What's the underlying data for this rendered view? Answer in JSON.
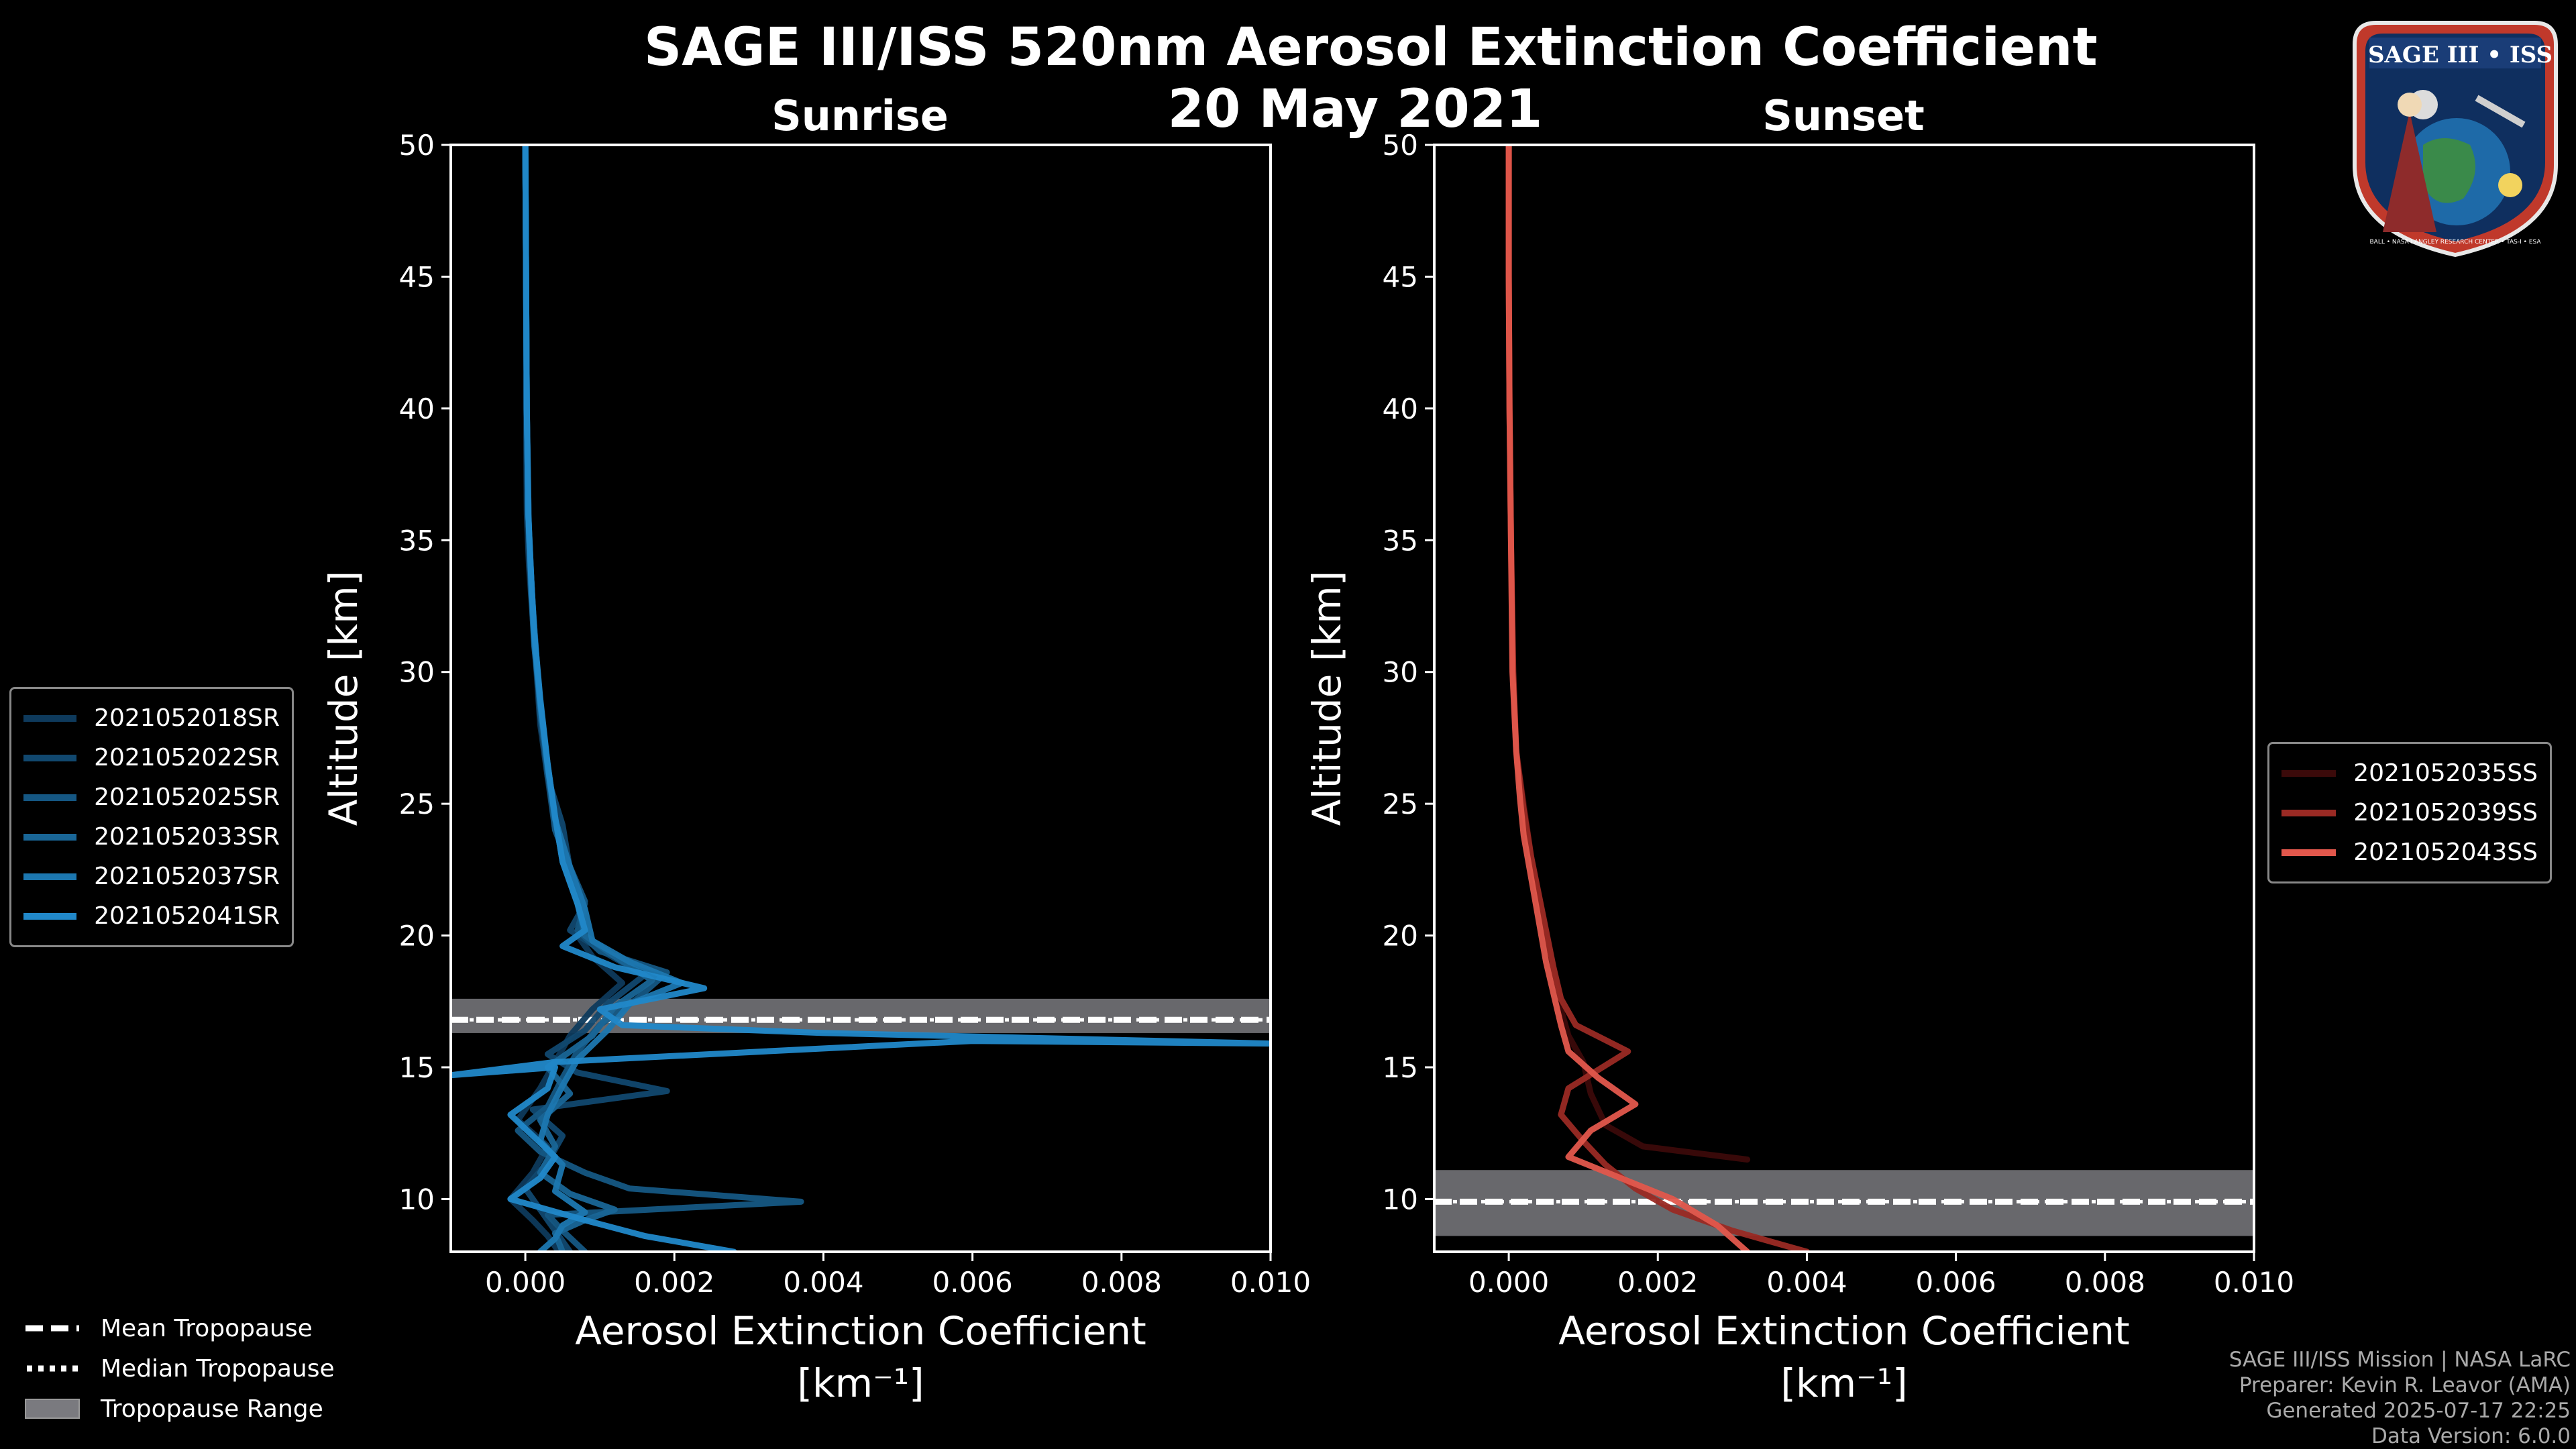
{
  "header": {
    "title_line1": "SAGE III/ISS 520nm Aerosol Extinction Coefficient",
    "title_line2": "20 May 2021"
  },
  "logo": {
    "text": "SAGE III • ISS",
    "ring_text": "BALL • NASA LANGLEY RESEARCH CENTER • TAS-I • ESA"
  },
  "footer": {
    "line1": "SAGE III/ISS Mission | NASA LaRC",
    "line2": "Preparer: Kevin R. Leavor (AMA)",
    "line3": "Generated 2025-07-17 22:25",
    "line4": "Data Version: 6.0.0"
  },
  "tropopause_legend": {
    "mean": "Mean Tropopause",
    "median": "Median Tropopause",
    "range": "Tropopause Range"
  },
  "chart_data": [
    {
      "type": "line",
      "title": "Sunrise",
      "xlabel": "Aerosol Extinction Coefficient",
      "xlabel_unit": "[km⁻¹]",
      "ylabel": "Altitude [km]",
      "xlim": [
        -0.001,
        0.01
      ],
      "ylim": [
        8,
        50
      ],
      "xticks": [
        0.0,
        0.002,
        0.004,
        0.006,
        0.008,
        0.01
      ],
      "xtick_labels": [
        "0.000",
        "0.002",
        "0.004",
        "0.006",
        "0.008",
        "0.010"
      ],
      "yticks": [
        10,
        15,
        20,
        25,
        30,
        35,
        40,
        45,
        50
      ],
      "ytick_labels": [
        "10",
        "15",
        "20",
        "25",
        "30",
        "35",
        "40",
        "45",
        "50"
      ],
      "tropopause": {
        "mean": 16.8,
        "median": 16.8,
        "range": [
          16.3,
          17.6
        ]
      },
      "series": [
        {
          "name": "2021052018SR",
          "color": "#0e3a5c",
          "points": [
            [
              0.00045,
              8.0
            ],
            [
              0.0003,
              8.6
            ],
            [
              0.0001,
              9.2
            ],
            [
              -0.0002,
              10.0
            ],
            [
              0.0001,
              11.0
            ],
            [
              0.0003,
              12.0
            ],
            [
              -0.0001,
              13.0
            ],
            [
              0.0002,
              14.2
            ],
            [
              0.0004,
              15.2
            ],
            [
              0.0006,
              16.2
            ],
            [
              0.0009,
              17.2
            ],
            [
              0.0013,
              18.2
            ],
            [
              0.0009,
              19.2
            ],
            [
              0.0007,
              20.0
            ],
            [
              0.0008,
              21.0
            ],
            [
              0.0006,
              22.5
            ],
            [
              0.0004,
              24.0
            ],
            [
              0.0003,
              26.0
            ],
            [
              0.0002,
              28.0
            ],
            [
              0.00015,
              30.0
            ],
            [
              0.0001,
              32.0
            ],
            [
              5e-05,
              34.0
            ],
            [
              2e-05,
              36.0
            ],
            [
              1e-05,
              40.0
            ],
            [
              1e-05,
              45.0
            ],
            [
              0.0,
              50.0
            ]
          ]
        },
        {
          "name": "2021052022SR",
          "color": "#11486f",
          "points": [
            [
              0.0006,
              8.0
            ],
            [
              0.0004,
              8.8
            ],
            [
              0.0002,
              9.6
            ],
            [
              0.0,
              10.4
            ],
            [
              0.0003,
              11.4
            ],
            [
              0.0005,
              12.4
            ],
            [
              0.0001,
              13.4
            ],
            [
              0.0019,
              14.1
            ],
            [
              0.0007,
              14.8
            ],
            [
              0.0003,
              15.5
            ],
            [
              0.0008,
              16.4
            ],
            [
              0.0011,
              17.4
            ],
            [
              0.0016,
              18.5
            ],
            [
              0.0011,
              19.3
            ],
            [
              0.0006,
              20.2
            ],
            [
              0.0008,
              21.2
            ],
            [
              0.0006,
              22.5
            ],
            [
              0.0005,
              24.2
            ],
            [
              0.0003,
              26.0
            ],
            [
              0.0002,
              28.5
            ],
            [
              0.00015,
              30.5
            ],
            [
              0.0001,
              32.5
            ],
            [
              5e-05,
              35.0
            ],
            [
              2e-05,
              40.0
            ],
            [
              1e-05,
              45.0
            ],
            [
              0.0,
              50.0
            ]
          ]
        },
        {
          "name": "2021052025SR",
          "color": "#155783",
          "points": [
            [
              0.0008,
              8.0
            ],
            [
              0.0005,
              8.8
            ],
            [
              0.0003,
              9.4
            ],
            [
              0.0037,
              9.9
            ],
            [
              0.0014,
              10.4
            ],
            [
              0.0008,
              11.0
            ],
            [
              0.0002,
              11.8
            ],
            [
              -0.0001,
              12.6
            ],
            [
              0.0003,
              13.5
            ],
            [
              0.0005,
              14.6
            ],
            [
              0.0007,
              15.6
            ],
            [
              0.001,
              16.6
            ],
            [
              0.0015,
              17.6
            ],
            [
              0.0019,
              18.6
            ],
            [
              0.001,
              19.4
            ],
            [
              0.0007,
              20.2
            ],
            [
              0.0008,
              21.3
            ],
            [
              0.0006,
              22.6
            ],
            [
              0.0004,
              24.0
            ],
            [
              0.0003,
              26.2
            ],
            [
              0.0002,
              28.4
            ],
            [
              0.00015,
              30.5
            ],
            [
              0.0001,
              32.5
            ],
            [
              5e-05,
              35.0
            ],
            [
              2e-05,
              40.0
            ],
            [
              1e-05,
              45.0
            ],
            [
              0.0,
              50.0
            ]
          ]
        },
        {
          "name": "2021052033SR",
          "color": "#196697",
          "points": [
            [
              0.0005,
              8.0
            ],
            [
              0.0004,
              8.7
            ],
            [
              0.0008,
              9.2
            ],
            [
              0.0012,
              9.6
            ],
            [
              0.0006,
              10.2
            ],
            [
              0.0002,
              11.0
            ],
            [
              0.0004,
              12.0
            ],
            [
              0.0002,
              13.0
            ],
            [
              0.0006,
              14.0
            ],
            [
              0.0003,
              15.0
            ],
            [
              0.0009,
              16.2
            ],
            [
              0.0012,
              17.3
            ],
            [
              0.0017,
              18.3
            ],
            [
              0.0012,
              19.2
            ],
            [
              0.0008,
              20.0
            ],
            [
              0.0007,
              21.2
            ],
            [
              0.0005,
              22.8
            ],
            [
              0.0004,
              24.5
            ],
            [
              0.0003,
              26.5
            ],
            [
              0.0002,
              28.8
            ],
            [
              0.00012,
              31.0
            ],
            [
              8e-05,
              33.0
            ],
            [
              4e-05,
              36.0
            ],
            [
              2e-05,
              40.0
            ],
            [
              1e-05,
              45.0
            ],
            [
              0.0,
              50.0
            ]
          ]
        },
        {
          "name": "2021052037SR",
          "color": "#1c77b0",
          "points": [
            [
              0.0002,
              8.0
            ],
            [
              0.0004,
              8.5
            ],
            [
              0.0005,
              9.0
            ],
            [
              0.0008,
              9.5
            ],
            [
              0.0004,
              10.3
            ],
            [
              0.0005,
              11.3
            ],
            [
              0.0002,
              12.2
            ],
            [
              0.0003,
              13.2
            ],
            [
              0.0005,
              14.3
            ],
            [
              0.0007,
              15.3
            ],
            [
              0.0011,
              16.4
            ],
            [
              0.0014,
              17.4
            ],
            [
              0.0021,
              18.2
            ],
            [
              0.0014,
              19.0
            ],
            [
              0.0009,
              19.8
            ],
            [
              0.0008,
              21.0
            ],
            [
              0.0006,
              22.6
            ],
            [
              0.0004,
              24.4
            ],
            [
              0.0003,
              26.4
            ],
            [
              0.0002,
              28.8
            ],
            [
              0.00012,
              31.2
            ],
            [
              8e-05,
              33.5
            ],
            [
              4e-05,
              36.0
            ],
            [
              2e-05,
              40.0
            ],
            [
              1e-05,
              45.0
            ],
            [
              0.0,
              50.0
            ]
          ]
        },
        {
          "name": "2021052041SR",
          "color": "#2188c9",
          "points": [
            [
              0.0028,
              8.0
            ],
            [
              0.0016,
              8.6
            ],
            [
              0.0008,
              9.2
            ],
            [
              -0.0002,
              10.0
            ],
            [
              0.0002,
              10.8
            ],
            [
              0.0004,
              11.6
            ],
            [
              0.0001,
              12.4
            ],
            [
              -0.0002,
              13.2
            ],
            [
              0.0003,
              14.2
            ],
            [
              0.0004,
              15.0
            ],
            [
              -0.001,
              14.7
            ],
            [
              0.0004,
              15.2
            ],
            [
              0.006,
              16.0
            ],
            [
              0.01,
              15.9
            ],
            [
              0.004,
              16.3
            ],
            [
              0.0013,
              16.6
            ],
            [
              0.001,
              17.2
            ],
            [
              0.0024,
              18.0
            ],
            [
              0.0012,
              18.8
            ],
            [
              0.0005,
              19.6
            ],
            [
              0.0008,
              20.2
            ],
            [
              0.0007,
              21.2
            ],
            [
              0.0005,
              22.8
            ],
            [
              0.0004,
              24.5
            ],
            [
              0.0003,
              26.5
            ],
            [
              0.0002,
              29.0
            ],
            [
              0.00012,
              31.5
            ],
            [
              8e-05,
              33.5
            ],
            [
              4e-05,
              36.0
            ],
            [
              2e-05,
              40.0
            ],
            [
              1e-05,
              45.0
            ],
            [
              0.0,
              50.0
            ]
          ]
        }
      ]
    },
    {
      "type": "line",
      "title": "Sunset",
      "xlabel": "Aerosol Extinction Coefficient",
      "xlabel_unit": "[km⁻¹]",
      "ylabel": "Altitude [km]",
      "xlim": [
        -0.001,
        0.01
      ],
      "ylim": [
        8,
        50
      ],
      "xticks": [
        0.0,
        0.002,
        0.004,
        0.006,
        0.008,
        0.01
      ],
      "xtick_labels": [
        "0.000",
        "0.002",
        "0.004",
        "0.006",
        "0.008",
        "0.010"
      ],
      "yticks": [
        10,
        15,
        20,
        25,
        30,
        35,
        40,
        45,
        50
      ],
      "ytick_labels": [
        "10",
        "15",
        "20",
        "25",
        "30",
        "35",
        "40",
        "45",
        "50"
      ],
      "tropopause": {
        "mean": 9.9,
        "median": 9.9,
        "range": [
          8.6,
          11.1
        ]
      },
      "series": [
        {
          "name": "2021052035SS",
          "color": "#3b0a0a",
          "points": [
            [
              0.0032,
              11.5
            ],
            [
              0.0018,
              12.0
            ],
            [
              0.0013,
              12.8
            ],
            [
              0.0011,
              14.0
            ],
            [
              0.001,
              15.2
            ],
            [
              0.0008,
              16.2
            ],
            [
              0.0007,
              17.2
            ],
            [
              0.0006,
              18.5
            ],
            [
              0.0005,
              20.0
            ],
            [
              0.0004,
              21.5
            ],
            [
              0.0003,
              23.0
            ],
            [
              0.0002,
              25.0
            ],
            [
              0.0001,
              27.0
            ],
            [
              5e-05,
              30.0
            ],
            [
              3e-05,
              35.0
            ],
            [
              1e-05,
              40.0
            ],
            [
              0.0,
              45.0
            ],
            [
              0.0,
              50.0
            ]
          ]
        },
        {
          "name": "2021052039SS",
          "color": "#9a2a24",
          "points": [
            [
              0.004,
              8.0
            ],
            [
              0.003,
              8.8
            ],
            [
              0.0022,
              9.6
            ],
            [
              0.0017,
              10.4
            ],
            [
              0.0013,
              11.3
            ],
            [
              0.001,
              12.2
            ],
            [
              0.0007,
              13.2
            ],
            [
              0.0008,
              14.2
            ],
            [
              0.0016,
              15.6
            ],
            [
              0.0009,
              16.6
            ],
            [
              0.0007,
              17.6
            ],
            [
              0.0006,
              18.8
            ],
            [
              0.0005,
              20.2
            ],
            [
              0.0004,
              21.6
            ],
            [
              0.0003,
              23.0
            ],
            [
              0.0002,
              24.8
            ],
            [
              0.0001,
              27.0
            ],
            [
              6e-05,
              30.0
            ],
            [
              3e-05,
              35.0
            ],
            [
              1e-05,
              40.0
            ],
            [
              0.0,
              45.0
            ],
            [
              0.0,
              50.0
            ]
          ]
        },
        {
          "name": "2021052043SS",
          "color": "#e2574c",
          "points": [
            [
              0.0032,
              8.0
            ],
            [
              0.0028,
              9.0
            ],
            [
              0.0022,
              10.0
            ],
            [
              0.0015,
              10.8
            ],
            [
              0.0008,
              11.6
            ],
            [
              0.0011,
              12.6
            ],
            [
              0.0017,
              13.6
            ],
            [
              0.0012,
              14.6
            ],
            [
              0.0008,
              15.6
            ],
            [
              0.0007,
              16.6
            ],
            [
              0.0006,
              17.8
            ],
            [
              0.0005,
              19.0
            ],
            [
              0.0004,
              20.6
            ],
            [
              0.0003,
              22.2
            ],
            [
              0.0002,
              23.8
            ],
            [
              0.00015,
              25.2
            ],
            [
              0.0001,
              27.0
            ],
            [
              5e-05,
              30.0
            ],
            [
              3e-05,
              35.0
            ],
            [
              1e-05,
              40.0
            ],
            [
              0.0,
              45.0
            ],
            [
              0.0,
              50.0
            ]
          ]
        }
      ]
    }
  ]
}
